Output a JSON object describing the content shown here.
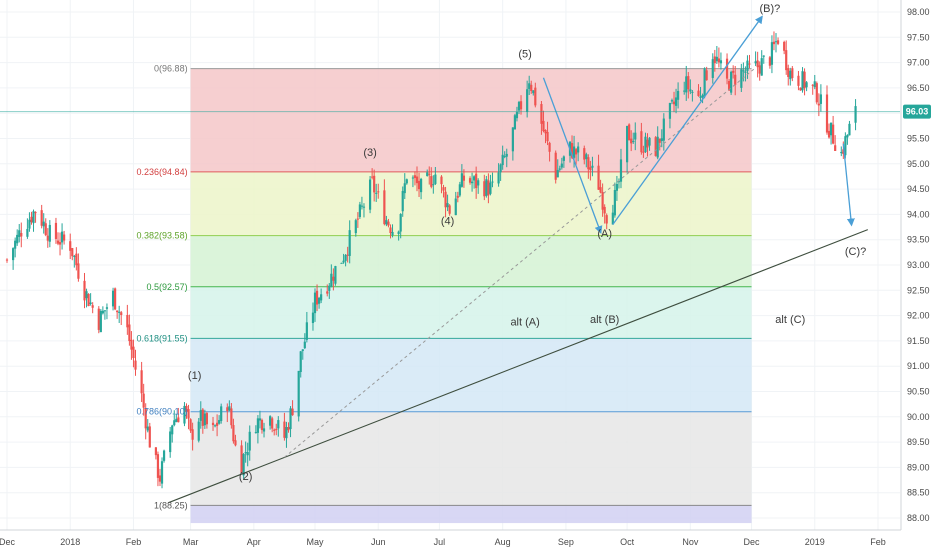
{
  "chart_data": {
    "type": "candlestick",
    "title": "",
    "xlabel": "",
    "ylabel": "",
    "ylim": [
      87.9,
      98.2
    ],
    "x_tick_labels": [
      "Dec",
      "2018",
      "Feb",
      "Mar",
      "Apr",
      "May",
      "Jun",
      "Jul",
      "Aug",
      "Sep",
      "Oct",
      "Nov",
      "Dec",
      "2019",
      "Feb"
    ],
    "x_tick_dates": [
      "2017-12-01",
      "2018-01-01",
      "2018-02-01",
      "2018-03-01",
      "2018-04-01",
      "2018-05-01",
      "2018-06-01",
      "2018-07-01",
      "2018-08-01",
      "2018-09-01",
      "2018-10-01",
      "2018-11-01",
      "2018-12-01",
      "2019-01-01",
      "2019-02-01"
    ],
    "y_ticks": [
      88.0,
      88.5,
      89.0,
      89.5,
      90.0,
      90.5,
      91.0,
      91.5,
      92.0,
      92.5,
      93.0,
      93.5,
      94.0,
      94.5,
      95.0,
      95.5,
      96.0,
      96.5,
      97.0,
      97.5,
      98.0
    ],
    "y_tick_labels": [
      "88.00",
      "88.50",
      "89.00",
      "89.50",
      "90.00",
      "90.50",
      "91.00",
      "91.50",
      "92.00",
      "92.50",
      "93.00",
      "93.50",
      "94.00",
      "94.50",
      "95.00",
      "95.50",
      "96.00",
      "96.50",
      "97.00",
      "97.50",
      "98.00"
    ],
    "last_price": 96.03,
    "last_price_label": "96.03",
    "price_path": [
      {
        "date": "2017-12-01",
        "price": 93.1
      },
      {
        "date": "2017-12-08",
        "price": 93.7
      },
      {
        "date": "2017-12-15",
        "price": 94.1
      },
      {
        "date": "2017-12-22",
        "price": 93.6
      },
      {
        "date": "2018-01-01",
        "price": 93.4
      },
      {
        "date": "2018-01-08",
        "price": 92.5
      },
      {
        "date": "2018-01-15",
        "price": 91.9
      },
      {
        "date": "2018-01-22",
        "price": 92.4
      },
      {
        "date": "2018-01-29",
        "price": 91.7
      },
      {
        "date": "2018-02-05",
        "price": 90.4
      },
      {
        "date": "2018-02-10",
        "price": 89.3
      },
      {
        "date": "2018-02-14",
        "price": 88.8
      },
      {
        "date": "2018-02-20",
        "price": 89.9
      },
      {
        "date": "2018-02-26",
        "price": 90.2
      },
      {
        "date": "2018-03-01",
        "price": 89.6
      },
      {
        "date": "2018-03-05",
        "price": 90.0
      },
      {
        "date": "2018-03-12",
        "price": 89.7
      },
      {
        "date": "2018-03-19",
        "price": 90.3
      },
      {
        "date": "2018-03-23",
        "price": 89.4
      },
      {
        "date": "2018-03-26",
        "price": 89.1
      },
      {
        "date": "2018-04-02",
        "price": 89.9
      },
      {
        "date": "2018-04-09",
        "price": 90.0
      },
      {
        "date": "2018-04-16",
        "price": 89.6
      },
      {
        "date": "2018-04-20",
        "price": 90.2
      },
      {
        "date": "2018-04-24",
        "price": 91.2
      },
      {
        "date": "2018-05-01",
        "price": 92.3
      },
      {
        "date": "2018-05-08",
        "price": 92.7
      },
      {
        "date": "2018-05-15",
        "price": 93.2
      },
      {
        "date": "2018-05-22",
        "price": 93.9
      },
      {
        "date": "2018-05-29",
        "price": 94.6
      },
      {
        "date": "2018-06-05",
        "price": 93.9
      },
      {
        "date": "2018-06-10",
        "price": 93.6
      },
      {
        "date": "2018-06-15",
        "price": 94.8
      },
      {
        "date": "2018-06-22",
        "price": 94.5
      },
      {
        "date": "2018-06-29",
        "price": 94.8
      },
      {
        "date": "2018-07-06",
        "price": 94.1
      },
      {
        "date": "2018-07-13",
        "price": 94.7
      },
      {
        "date": "2018-07-20",
        "price": 94.6
      },
      {
        "date": "2018-07-27",
        "price": 94.5
      },
      {
        "date": "2018-08-03",
        "price": 95.2
      },
      {
        "date": "2018-08-08",
        "price": 95.9
      },
      {
        "date": "2018-08-14",
        "price": 96.7
      },
      {
        "date": "2018-08-20",
        "price": 95.8
      },
      {
        "date": "2018-08-27",
        "price": 94.8
      },
      {
        "date": "2018-09-03",
        "price": 95.3
      },
      {
        "date": "2018-09-10",
        "price": 95.1
      },
      {
        "date": "2018-09-17",
        "price": 94.6
      },
      {
        "date": "2018-09-21",
        "price": 94.0
      },
      {
        "date": "2018-09-26",
        "price": 94.4
      },
      {
        "date": "2018-10-01",
        "price": 95.6
      },
      {
        "date": "2018-10-08",
        "price": 95.4
      },
      {
        "date": "2018-10-15",
        "price": 95.3
      },
      {
        "date": "2018-10-22",
        "price": 96.0
      },
      {
        "date": "2018-10-29",
        "price": 96.6
      },
      {
        "date": "2018-11-05",
        "price": 96.3
      },
      {
        "date": "2018-11-12",
        "price": 97.2
      },
      {
        "date": "2018-11-19",
        "price": 96.6
      },
      {
        "date": "2018-11-26",
        "price": 96.8
      },
      {
        "date": "2018-12-03",
        "price": 96.9
      },
      {
        "date": "2018-12-10",
        "price": 97.1
      },
      {
        "date": "2018-12-14",
        "price": 97.5
      },
      {
        "date": "2018-12-20",
        "price": 96.8
      },
      {
        "date": "2018-12-27",
        "price": 96.6
      },
      {
        "date": "2019-01-02",
        "price": 96.4
      },
      {
        "date": "2019-01-08",
        "price": 95.7
      },
      {
        "date": "2019-01-14",
        "price": 95.2
      },
      {
        "date": "2019-01-18",
        "price": 95.7
      },
      {
        "date": "2019-01-21",
        "price": 96.0
      }
    ],
    "fib_retracement": {
      "start_date": "2018-03-01",
      "end_date": "2018-12-01",
      "levels": [
        {
          "ratio_label": "0",
          "price": 96.88,
          "label": "0(96.88)",
          "line_color": "#999999",
          "fill": "#f4c7c8",
          "text_color": "#777777"
        },
        {
          "ratio_label": "0.236",
          "price": 94.84,
          "label": "0.236(94.84)",
          "line_color": "#e05b5b",
          "fill": "#ecf5c9",
          "text_color": "#d23f3f"
        },
        {
          "ratio_label": "0.382",
          "price": 93.58,
          "label": "0.382(93.58)",
          "line_color": "#8fce4f",
          "fill": "#d5f2d4",
          "text_color": "#5ea32a"
        },
        {
          "ratio_label": "0.5",
          "price": 92.57,
          "label": "0.5(92.57)",
          "line_color": "#44b550",
          "fill": "#d5f3ea",
          "text_color": "#2e9a3e"
        },
        {
          "ratio_label": "0.618",
          "price": 91.55,
          "label": "0.618(91.55)",
          "line_color": "#33a89a",
          "fill": "#d3e8f6",
          "text_color": "#1f8f82"
        },
        {
          "ratio_label": "0.786",
          "price": 90.1,
          "label": "0.786(90.10)",
          "line_color": "#5b9bd5",
          "fill": "#e6e6e6",
          "text_color": "#3f7fbf"
        },
        {
          "ratio_label": "1",
          "price": 88.25,
          "label": "1(88.25)",
          "line_color": "#888888",
          "fill": "#d1d0f2",
          "text_color": "#555555"
        }
      ],
      "bottom_fill_to": 87.9
    },
    "wave_labels": [
      {
        "text": "(1)",
        "date": "2018-03-03",
        "price": 90.75
      },
      {
        "text": "(2)",
        "date": "2018-03-28",
        "price": 88.75
      },
      {
        "text": "(3)",
        "date": "2018-05-28",
        "price": 95.15
      },
      {
        "text": "(4)",
        "date": "2018-07-05",
        "price": 93.8
      },
      {
        "text": "(5)",
        "date": "2018-08-12",
        "price": 97.1
      },
      {
        "text": "(A)",
        "date": "2018-09-20",
        "price": 93.55
      },
      {
        "text": "(B)?",
        "date": "2018-12-10",
        "price": 98.0
      },
      {
        "text": "(C)?",
        "date": "2019-01-21",
        "price": 93.2
      },
      {
        "text": "alt (A)",
        "date": "2018-08-12",
        "price": 91.8
      },
      {
        "text": "alt (B)",
        "date": "2018-09-20",
        "price": 91.85
      },
      {
        "text": "alt (C)",
        "date": "2018-12-20",
        "price": 91.85
      }
    ],
    "trendline": {
      "start": {
        "date": "2018-02-18",
        "price": 88.3
      },
      "end": {
        "date": "2019-01-27",
        "price": 93.7
      }
    },
    "dashed_line": {
      "start": {
        "date": "2018-04-16",
        "price": 89.2
      },
      "end": {
        "date": "2018-12-03",
        "price": 96.9
      }
    },
    "projection_arrows": [
      {
        "start": {
          "date": "2018-08-21",
          "price": 96.7
        },
        "end": {
          "date": "2018-09-18",
          "price": 93.65
        }
      },
      {
        "start": {
          "date": "2018-09-24",
          "price": 93.8
        },
        "end": {
          "date": "2018-12-06",
          "price": 97.9
        }
      },
      {
        "start": {
          "date": "2019-01-15",
          "price": 95.4
        },
        "end": {
          "date": "2019-01-19",
          "price": 93.8
        }
      }
    ],
    "colors": {
      "up": "#26a69a",
      "down": "#ef5350",
      "arrow": "#4a9fd6",
      "trend": "#3e4e3e",
      "price_line": "#26a69a",
      "price_tag": "#26a69a"
    }
  }
}
